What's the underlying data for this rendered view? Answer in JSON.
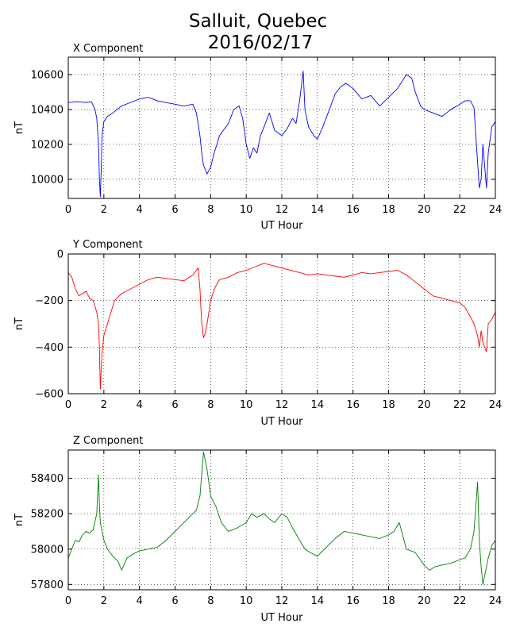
{
  "title_line1": "Salluit, Quebec",
  "title_line2": "2016/02/17",
  "chart_data": [
    {
      "type": "line",
      "title": "X Component",
      "xlabel": "UT Hour",
      "ylabel": "nT",
      "xlim": [
        0,
        24
      ],
      "ylim": [
        9890,
        10700
      ],
      "xticks": [
        0,
        2,
        4,
        6,
        8,
        10,
        12,
        14,
        16,
        18,
        20,
        22,
        24
      ],
      "yticks": [
        10000,
        10200,
        10400,
        10600
      ],
      "grid": true,
      "color": "#0000ff",
      "series": [
        {
          "x": [
            0,
            0.5,
            1,
            1.3,
            1.5,
            1.6,
            1.7,
            1.75,
            1.8,
            1.85,
            1.9,
            2.0,
            2.2,
            2.5,
            3,
            3.5,
            4,
            4.5,
            5,
            5.5,
            6,
            6.5,
            7,
            7.2,
            7.4,
            7.5,
            7.6,
            7.8,
            8,
            8.2,
            8.5,
            9,
            9.3,
            9.6,
            9.8,
            10,
            10.2,
            10.4,
            10.6,
            10.8,
            11,
            11.3,
            11.6,
            12,
            12.3,
            12.6,
            12.8,
            13,
            13.2,
            13.3,
            13.5,
            13.8,
            14,
            14.3,
            14.6,
            15,
            15.3,
            15.6,
            16,
            16.5,
            17,
            17.5,
            18,
            18.5,
            19,
            19.3,
            19.5,
            19.8,
            20,
            20.5,
            21,
            21.5,
            22,
            22.3,
            22.6,
            22.8,
            23,
            23.1,
            23.2,
            23.3,
            23.5,
            23.6,
            23.8,
            24
          ],
          "y": [
            10440,
            10445,
            10440,
            10445,
            10400,
            10350,
            10200,
            10000,
            9900,
            10050,
            10250,
            10330,
            10360,
            10380,
            10420,
            10440,
            10460,
            10470,
            10450,
            10440,
            10430,
            10420,
            10430,
            10380,
            10250,
            10150,
            10080,
            10030,
            10070,
            10150,
            10250,
            10320,
            10400,
            10420,
            10350,
            10200,
            10120,
            10180,
            10150,
            10250,
            10300,
            10380,
            10280,
            10250,
            10290,
            10350,
            10320,
            10450,
            10620,
            10400,
            10300,
            10250,
            10230,
            10300,
            10380,
            10490,
            10530,
            10550,
            10520,
            10460,
            10480,
            10420,
            10470,
            10520,
            10600,
            10580,
            10500,
            10420,
            10400,
            10380,
            10360,
            10400,
            10430,
            10450,
            10450,
            10410,
            10100,
            9950,
            10000,
            10200,
            9950,
            10150,
            10300,
            10330
          ]
        }
      ]
    },
    {
      "type": "line",
      "title": "Y Component",
      "xlabel": "UT Hour",
      "ylabel": "nT",
      "xlim": [
        0,
        24
      ],
      "ylim": [
        -600,
        0
      ],
      "xticks": [
        0,
        2,
        4,
        6,
        8,
        10,
        12,
        14,
        16,
        18,
        20,
        22,
        24
      ],
      "yticks": [
        -600,
        -400,
        -200,
        0
      ],
      "grid": true,
      "color": "#ff0000",
      "series": [
        {
          "x": [
            0,
            0.2,
            0.4,
            0.6,
            0.8,
            1,
            1.2,
            1.4,
            1.6,
            1.7,
            1.75,
            1.8,
            1.9,
            2.0,
            2.2,
            2.4,
            2.6,
            3,
            3.5,
            4,
            4.5,
            5,
            5.5,
            6,
            6.5,
            7,
            7.2,
            7.3,
            7.4,
            7.5,
            7.6,
            7.7,
            7.8,
            8,
            8.2,
            8.5,
            9,
            9.5,
            10,
            10.5,
            11,
            11.5,
            12,
            12.5,
            13,
            13.5,
            14,
            14.5,
            15,
            15.5,
            16,
            16.5,
            17,
            17.5,
            18,
            18.5,
            19,
            19.5,
            20,
            20.5,
            21,
            21.5,
            22,
            22.3,
            22.6,
            22.8,
            23,
            23.1,
            23.2,
            23.3,
            23.5,
            23.6,
            23.8,
            24
          ],
          "y": [
            -80,
            -100,
            -150,
            -180,
            -170,
            -160,
            -190,
            -200,
            -250,
            -300,
            -400,
            -580,
            -420,
            -350,
            -300,
            -250,
            -200,
            -170,
            -150,
            -130,
            -110,
            -100,
            -105,
            -110,
            -115,
            -90,
            -70,
            -60,
            -150,
            -300,
            -360,
            -340,
            -300,
            -200,
            -150,
            -110,
            -100,
            -80,
            -70,
            -55,
            -40,
            -50,
            -60,
            -70,
            -80,
            -90,
            -85,
            -90,
            -95,
            -100,
            -90,
            -80,
            -85,
            -80,
            -75,
            -70,
            -90,
            -120,
            -150,
            -180,
            -190,
            -200,
            -210,
            -230,
            -270,
            -300,
            -350,
            -400,
            -330,
            -380,
            -420,
            -300,
            -280,
            -250
          ]
        }
      ]
    },
    {
      "type": "line",
      "title": "Z Component",
      "xlabel": "UT Hour",
      "ylabel": "nT",
      "xlim": [
        0,
        24
      ],
      "ylim": [
        57770,
        58560
      ],
      "xticks": [
        0,
        2,
        4,
        6,
        8,
        10,
        12,
        14,
        16,
        18,
        20,
        22,
        24
      ],
      "yticks": [
        57800,
        58000,
        58200,
        58400
      ],
      "grid": true,
      "color": "#007f00",
      "series": [
        {
          "x": [
            0,
            0.2,
            0.4,
            0.6,
            0.8,
            1,
            1.2,
            1.4,
            1.6,
            1.7,
            1.75,
            1.8,
            1.9,
            2.0,
            2.2,
            2.5,
            2.8,
            3,
            3.3,
            3.6,
            4,
            4.5,
            5,
            5.5,
            6,
            6.5,
            7,
            7.2,
            7.4,
            7.6,
            7.8,
            8,
            8.3,
            8.6,
            9,
            9.5,
            10,
            10.3,
            10.6,
            11,
            11.3,
            11.6,
            12,
            12.3,
            12.6,
            13,
            13.3,
            13.6,
            14,
            14.3,
            14.6,
            15,
            15.5,
            16,
            16.5,
            17,
            17.5,
            18,
            18.3,
            18.6,
            19,
            19.5,
            20,
            20.3,
            20.6,
            21,
            21.5,
            22,
            22.3,
            22.6,
            22.8,
            23,
            23.1,
            23.2,
            23.3,
            23.4,
            23.6,
            23.8,
            24
          ],
          "y": [
            57950,
            58000,
            58050,
            58040,
            58080,
            58100,
            58090,
            58110,
            58200,
            58420,
            58250,
            58150,
            58100,
            58050,
            58000,
            57960,
            57930,
            57880,
            57950,
            57970,
            57990,
            58000,
            58010,
            58050,
            58100,
            58150,
            58200,
            58220,
            58300,
            58550,
            58450,
            58300,
            58240,
            58150,
            58100,
            58120,
            58150,
            58200,
            58180,
            58200,
            58170,
            58150,
            58200,
            58180,
            58120,
            58050,
            58000,
            57980,
            57960,
            57990,
            58020,
            58060,
            58100,
            58090,
            58080,
            58070,
            58060,
            58080,
            58100,
            58150,
            58000,
            57980,
            57910,
            57880,
            57900,
            57910,
            57920,
            57940,
            57950,
            58000,
            58100,
            58380,
            58050,
            57900,
            57800,
            57850,
            57950,
            58020,
            58050
          ]
        }
      ]
    }
  ]
}
